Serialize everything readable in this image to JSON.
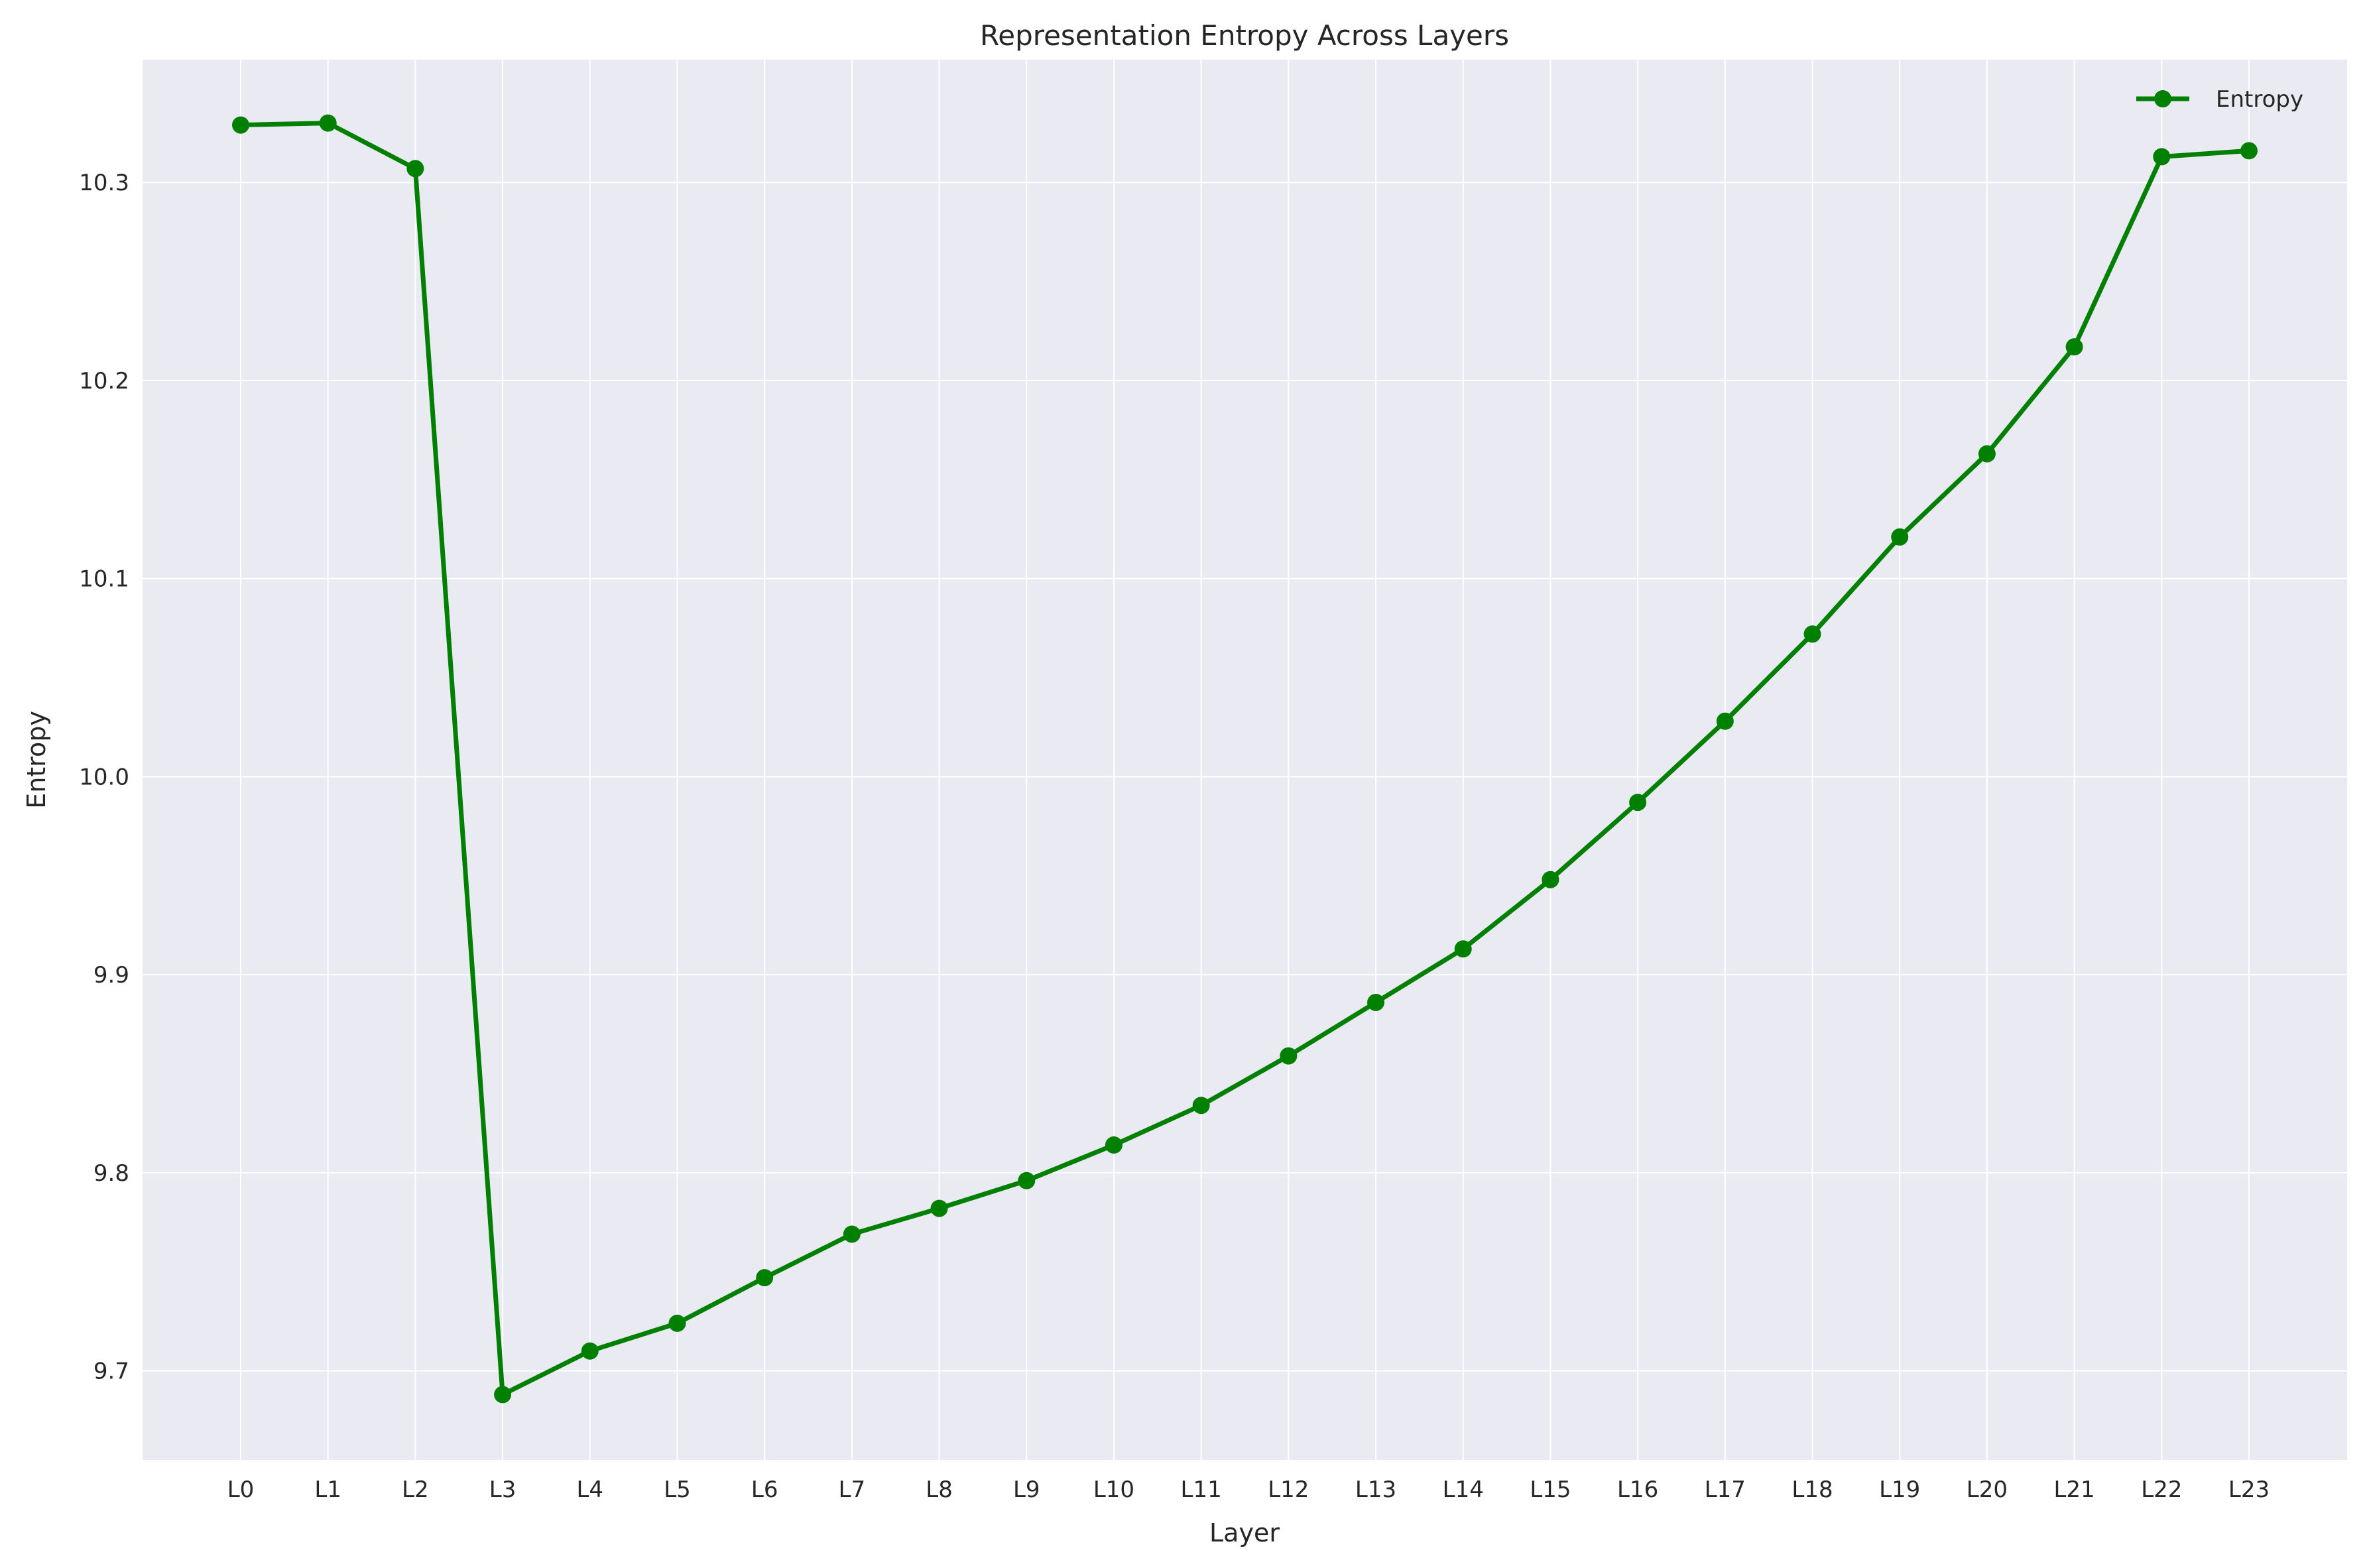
{
  "chart_data": {
    "type": "line",
    "title": "Representation Entropy Across Layers",
    "xlabel": "Layer",
    "ylabel": "Entropy",
    "categories": [
      "L0",
      "L1",
      "L2",
      "L3",
      "L4",
      "L5",
      "L6",
      "L7",
      "L8",
      "L9",
      "L10",
      "L11",
      "L12",
      "L13",
      "L14",
      "L15",
      "L16",
      "L17",
      "L18",
      "L19",
      "L20",
      "L21",
      "L22",
      "L23"
    ],
    "series": [
      {
        "name": "Entropy",
        "color": "#008000",
        "marker": "circle",
        "values": [
          10.329,
          10.33,
          10.307,
          9.688,
          9.71,
          9.724,
          9.747,
          9.769,
          9.782,
          9.796,
          9.814,
          9.834,
          9.859,
          9.886,
          9.913,
          9.948,
          9.987,
          10.028,
          10.072,
          10.121,
          10.163,
          10.217,
          10.313,
          10.316
        ]
      }
    ],
    "ylim": [
      9.655,
      10.362
    ],
    "yticks": [
      "9.7",
      "9.8",
      "9.9",
      "10.0",
      "10.1",
      "10.2",
      "10.3"
    ],
    "grid": true,
    "legend_position": "top-right",
    "background_color": "#eaeaf2",
    "grid_color": "#ffffff"
  }
}
